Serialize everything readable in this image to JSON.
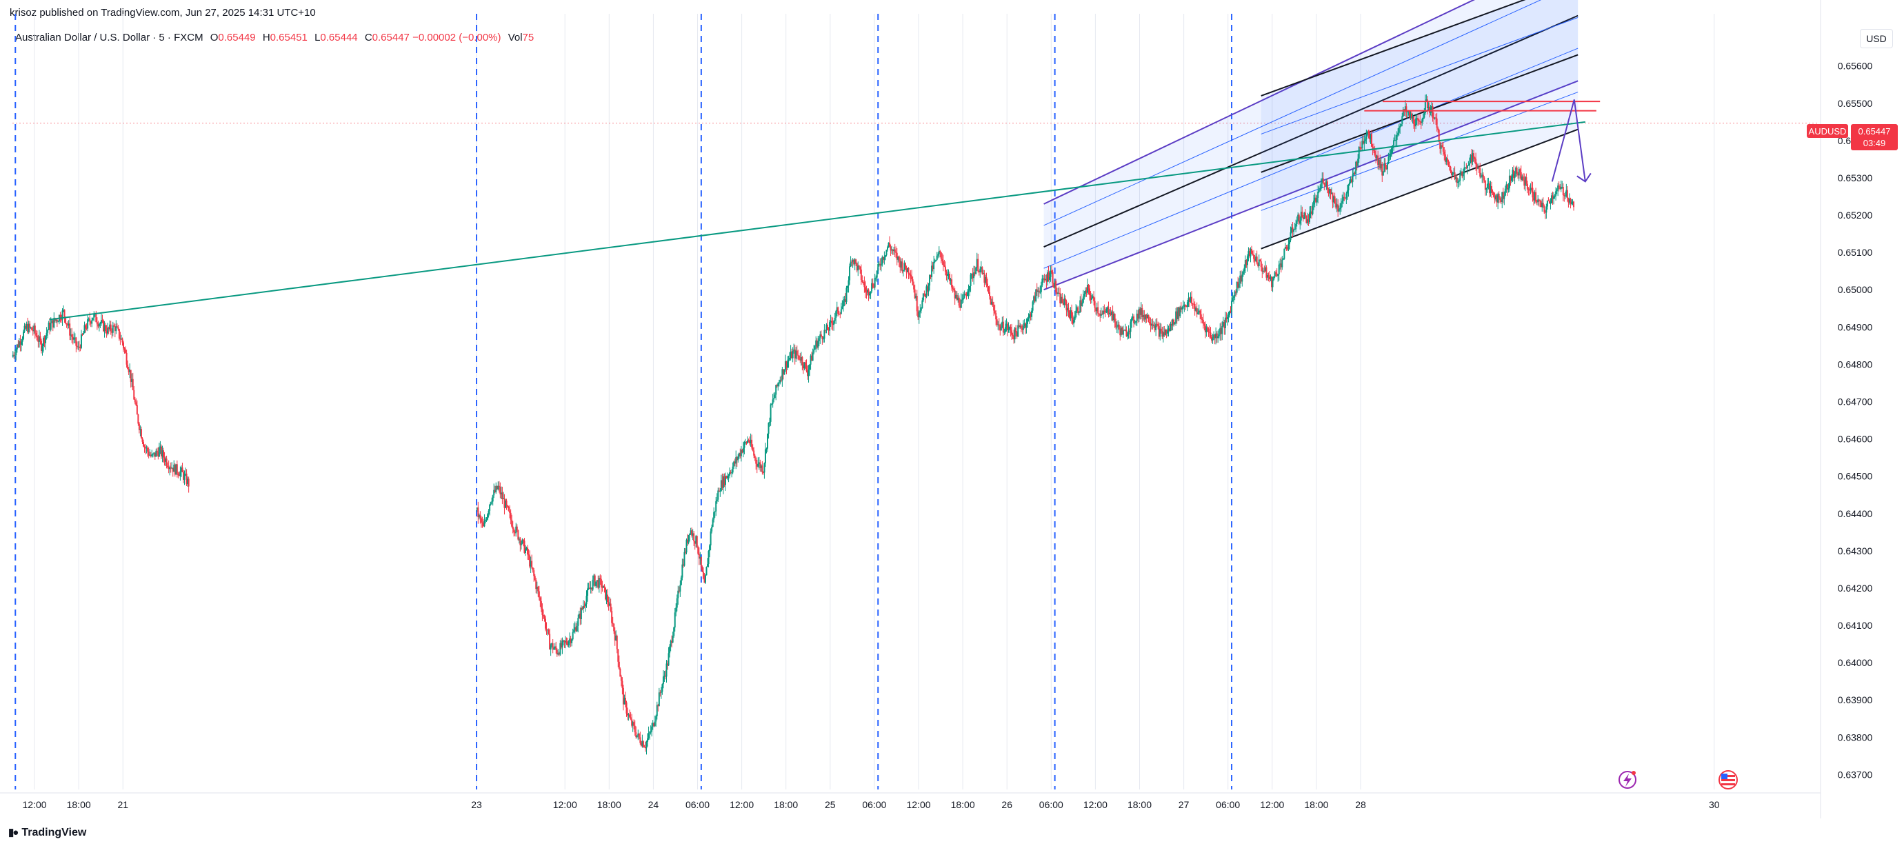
{
  "publisher": "krisoz published on TradingView.com, Jun 27, 2025 14:31 UTC+10",
  "legend": {
    "symbol": "Australian Dollar / U.S. Dollar · 5 · FXCM",
    "open_label": "O",
    "open": "0.65449",
    "high_label": "H",
    "high": "0.65451",
    "low_label": "L",
    "low": "0.65444",
    "close_label": "C",
    "close": "0.65447",
    "change": "−0.00002 (−0.00%)",
    "vol_label": "Vol",
    "vol": "75"
  },
  "currency_button": "USD",
  "brand": "TradingView",
  "badges": {
    "symbol": "AUDUSD",
    "price": "0.65447",
    "countdown": "03:49"
  },
  "colors": {
    "up": "#089981",
    "down": "#f23645",
    "grid": "#f0f3fa",
    "session_line": "#2962ff",
    "trendline": "#089981",
    "channel_outer": "#5b3cc4",
    "channel_inner": "#2962ff",
    "channel_mid": "#131722",
    "resistance": "#f23645",
    "projection": "#5b3cc4",
    "axis_text": "#131722"
  },
  "icons": [
    "bolt-event-icon",
    "us-flag-icon"
  ],
  "chart_data": {
    "type": "candlestick",
    "symbol": "AUDUSD",
    "interval": "5",
    "ylim": [
      0.6366,
      0.6574
    ],
    "y_ticks": [
      "0.65600",
      "0.65500",
      "0.65400",
      "0.65300",
      "0.65200",
      "0.65100",
      "0.65000",
      "0.64900",
      "0.64800",
      "0.64700",
      "0.64600",
      "0.64500",
      "0.64400",
      "0.64300",
      "0.64200",
      "0.64100",
      "0.64000",
      "0.63900",
      "0.63800",
      "0.63700"
    ],
    "x_ticks": [
      "12:00",
      "18:00",
      "21",
      "23",
      "12:00",
      "18:00",
      "24",
      "06:00",
      "12:00",
      "18:00",
      "25",
      "06:00",
      "12:00",
      "18:00",
      "26",
      "06:00",
      "12:00",
      "18:00",
      "27",
      "06:00",
      "12:00",
      "18:00",
      "28",
      "30"
    ],
    "x_tick_hours": [
      12,
      18,
      24,
      72,
      84,
      90,
      96,
      102,
      108,
      114,
      120,
      126,
      132,
      138,
      144,
      150,
      156,
      162,
      168,
      174,
      180,
      186,
      192,
      240
    ],
    "x_range_hours": [
      9.0,
      253.5
    ],
    "session_lines_hours": [
      9.4,
      72,
      102.5,
      126.5,
      150.5,
      174.5
    ],
    "grid": true,
    "last_price": 0.65447,
    "price_path": [
      [
        9.0,
        0.6482
      ],
      [
        10.0,
        0.6486
      ],
      [
        11.0,
        0.649
      ],
      [
        12.0,
        0.6489
      ],
      [
        13.0,
        0.6485
      ],
      [
        14.0,
        0.649
      ],
      [
        15.0,
        0.6492
      ],
      [
        16.0,
        0.6494
      ],
      [
        17.0,
        0.6488
      ],
      [
        18.0,
        0.6484
      ],
      [
        19.0,
        0.649
      ],
      [
        20.0,
        0.6493
      ],
      [
        21.0,
        0.6491
      ],
      [
        22.0,
        0.6489
      ],
      [
        23.0,
        0.649
      ],
      [
        24.0,
        0.6486
      ],
      [
        25.0,
        0.6478
      ],
      [
        26.0,
        0.6466
      ],
      [
        27.0,
        0.6458
      ],
      [
        28.0,
        0.6455
      ],
      [
        29.0,
        0.6457
      ],
      [
        30.0,
        0.6454
      ],
      [
        31.0,
        0.6452
      ],
      [
        32.0,
        0.6451
      ],
      [
        33.0,
        0.6448
      ],
      [
        72.0,
        0.6441
      ],
      [
        73.0,
        0.6436
      ],
      [
        74.0,
        0.6444
      ],
      [
        75.0,
        0.6447
      ],
      [
        76.0,
        0.6442
      ],
      [
        77.0,
        0.6437
      ],
      [
        78.0,
        0.6433
      ],
      [
        79.0,
        0.6429
      ],
      [
        80.0,
        0.6422
      ],
      [
        81.0,
        0.6414
      ],
      [
        82.0,
        0.6405
      ],
      [
        83.0,
        0.6403
      ],
      [
        84.0,
        0.6405
      ],
      [
        85.0,
        0.6407
      ],
      [
        86.0,
        0.6412
      ],
      [
        87.0,
        0.6418
      ],
      [
        88.0,
        0.6422
      ],
      [
        89.0,
        0.6421
      ],
      [
        90.0,
        0.6416
      ],
      [
        91.0,
        0.6406
      ],
      [
        92.0,
        0.639
      ],
      [
        93.0,
        0.6384
      ],
      [
        94.0,
        0.638
      ],
      [
        95.0,
        0.6378
      ],
      [
        96.0,
        0.6383
      ],
      [
        97.0,
        0.6392
      ],
      [
        98.0,
        0.64
      ],
      [
        99.0,
        0.6412
      ],
      [
        100.0,
        0.6426
      ],
      [
        101.0,
        0.6436
      ],
      [
        102.0,
        0.6432
      ],
      [
        103.0,
        0.642
      ],
      [
        104.0,
        0.6437
      ],
      [
        105.0,
        0.6447
      ],
      [
        106.0,
        0.645
      ],
      [
        107.0,
        0.6453
      ],
      [
        108.0,
        0.6457
      ],
      [
        109.0,
        0.646
      ],
      [
        110.0,
        0.6454
      ],
      [
        111.0,
        0.6452
      ],
      [
        112.0,
        0.6468
      ],
      [
        113.0,
        0.6475
      ],
      [
        114.0,
        0.648
      ],
      [
        115.0,
        0.6483
      ],
      [
        116.0,
        0.6482
      ],
      [
        117.0,
        0.6478
      ],
      [
        118.0,
        0.6485
      ],
      [
        119.0,
        0.6488
      ],
      [
        120.0,
        0.649
      ],
      [
        121.0,
        0.6494
      ],
      [
        122.0,
        0.6496
      ],
      [
        123.0,
        0.6509
      ],
      [
        124.0,
        0.6505
      ],
      [
        125.0,
        0.6499
      ],
      [
        126.0,
        0.6502
      ],
      [
        127.0,
        0.6508
      ],
      [
        128.0,
        0.6512
      ],
      [
        129.0,
        0.6509
      ],
      [
        130.0,
        0.6506
      ],
      [
        131.0,
        0.6505
      ],
      [
        132.0,
        0.6494
      ],
      [
        133.0,
        0.6499
      ],
      [
        134.0,
        0.6506
      ],
      [
        135.0,
        0.651
      ],
      [
        136.0,
        0.6504
      ],
      [
        137.0,
        0.6498
      ],
      [
        138.0,
        0.6496
      ],
      [
        139.0,
        0.6502
      ],
      [
        140.0,
        0.6507
      ],
      [
        141.0,
        0.6503
      ],
      [
        142.0,
        0.6496
      ],
      [
        143.0,
        0.649
      ],
      [
        144.0,
        0.649
      ],
      [
        145.0,
        0.6488
      ],
      [
        146.0,
        0.649
      ],
      [
        147.0,
        0.6492
      ],
      [
        148.0,
        0.6499
      ],
      [
        149.0,
        0.6502
      ],
      [
        150.0,
        0.6505
      ],
      [
        151.0,
        0.6498
      ],
      [
        152.0,
        0.6496
      ],
      [
        153.0,
        0.6492
      ],
      [
        154.0,
        0.6496
      ],
      [
        155.0,
        0.65
      ],
      [
        156.0,
        0.6496
      ],
      [
        157.0,
        0.6493
      ],
      [
        158.0,
        0.6495
      ],
      [
        159.0,
        0.649
      ],
      [
        160.0,
        0.6488
      ],
      [
        161.0,
        0.6491
      ],
      [
        162.0,
        0.6494
      ],
      [
        163.0,
        0.6493
      ],
      [
        164.0,
        0.6491
      ],
      [
        165.0,
        0.6488
      ],
      [
        166.0,
        0.6489
      ],
      [
        167.0,
        0.6493
      ],
      [
        168.0,
        0.6496
      ],
      [
        169.0,
        0.6497
      ],
      [
        170.0,
        0.6494
      ],
      [
        171.0,
        0.649
      ],
      [
        172.0,
        0.6487
      ],
      [
        173.0,
        0.6489
      ],
      [
        174.0,
        0.6492
      ],
      [
        175.0,
        0.65
      ],
      [
        176.0,
        0.6504
      ],
      [
        177.0,
        0.651
      ],
      [
        178.0,
        0.6508
      ],
      [
        179.0,
        0.6505
      ],
      [
        180.0,
        0.6502
      ],
      [
        181.0,
        0.6506
      ],
      [
        182.0,
        0.6511
      ],
      [
        183.0,
        0.6517
      ],
      [
        184.0,
        0.652
      ],
      [
        185.0,
        0.6519
      ],
      [
        186.0,
        0.6524
      ],
      [
        187.0,
        0.653
      ],
      [
        188.0,
        0.6526
      ],
      [
        189.0,
        0.6522
      ],
      [
        190.0,
        0.6525
      ],
      [
        191.0,
        0.653
      ],
      [
        192.0,
        0.6538
      ],
      [
        193.0,
        0.6543
      ],
      [
        194.0,
        0.6537
      ],
      [
        195.0,
        0.6532
      ],
      [
        196.0,
        0.6535
      ],
      [
        197.0,
        0.6542
      ],
      [
        198.0,
        0.6548
      ],
      [
        199.0,
        0.6546
      ],
      [
        200.0,
        0.6544
      ],
      [
        201.0,
        0.655
      ],
      [
        202.0,
        0.6547
      ],
      [
        203.0,
        0.6538
      ],
      [
        204.0,
        0.6533
      ],
      [
        205.0,
        0.653
      ],
      [
        206.0,
        0.6531
      ],
      [
        207.0,
        0.6536
      ],
      [
        208.0,
        0.6533
      ],
      [
        209.0,
        0.6528
      ],
      [
        210.0,
        0.6526
      ],
      [
        211.0,
        0.6524
      ],
      [
        212.0,
        0.6528
      ],
      [
        213.0,
        0.6532
      ],
      [
        214.0,
        0.653
      ],
      [
        215.0,
        0.6527
      ],
      [
        216.0,
        0.6524
      ],
      [
        217.0,
        0.6521
      ],
      [
        218.0,
        0.6525
      ],
      [
        219.0,
        0.6527
      ],
      [
        220.0,
        0.6526
      ],
      [
        221.0,
        0.6522
      ]
    ],
    "drawings": {
      "trendline": [
        [
          14.0,
          0.6492
        ],
        [
          222.5,
          0.6545
        ]
      ],
      "resistance_lines": [
        {
          "from": [
            195.0,
            0.65505
          ],
          "to": [
            224.5,
            0.65505
          ]
        },
        {
          "from": [
            192.5,
            0.6548
          ],
          "to": [
            224.0,
            0.6548
          ]
        }
      ],
      "channel_outer": {
        "lower": [
          [
            149.0,
            0.65
          ],
          [
            221.5,
            0.6556
          ]
        ],
        "upper": [
          [
            149.0,
            0.6523
          ],
          [
            221.5,
            0.6591
          ]
        ]
      },
      "channel_inner": {
        "lower": [
          [
            178.5,
            0.6511
          ],
          [
            221.5,
            0.6543
          ]
        ],
        "upper": [
          [
            178.5,
            0.6552
          ],
          [
            221.5,
            0.6583
          ]
        ]
      },
      "projection": [
        [
          218.0,
          0.6529
        ],
        [
          221.0,
          0.6551
        ],
        [
          222.5,
          0.6529
        ]
      ]
    }
  }
}
